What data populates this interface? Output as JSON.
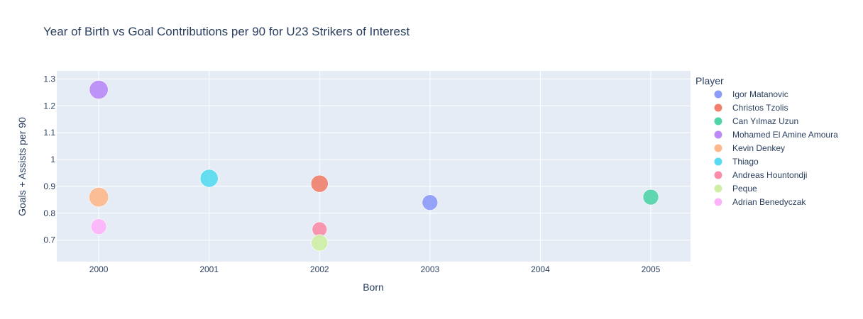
{
  "chart_data": {
    "type": "scatter",
    "title": "Year of Birth vs Goal Contributions per 90 for U23 Strikers of Interest",
    "xlabel": "Born",
    "ylabel": "Goals + Assists per 90",
    "xlim": [
      1999.62,
      2005.36
    ],
    "ylim": [
      0.62,
      1.33
    ],
    "x_ticks": [
      "2000",
      "2001",
      "2002",
      "2003",
      "2004",
      "2005"
    ],
    "y_ticks": [
      "0.7",
      "0.8",
      "0.9",
      "1",
      "1.1",
      "1.2",
      "1.3"
    ],
    "grid": true,
    "legend_title": "Player",
    "legend_position": "right",
    "series": [
      {
        "name": "Igor Matanovic",
        "color": "#8b9bf7",
        "x": [
          2003
        ],
        "y": [
          0.84
        ],
        "size": 1
      },
      {
        "name": "Christos Tzolis",
        "color": "#f0806c",
        "x": [
          2002
        ],
        "y": [
          0.91
        ],
        "size": 1.1
      },
      {
        "name": "Can Yılmaz Uzun",
        "color": "#4fd4a8",
        "x": [
          2005
        ],
        "y": [
          0.86
        ],
        "size": 1
      },
      {
        "name": "Mohamed El Amine Amoura",
        "color": "#b98af8",
        "x": [
          2000
        ],
        "y": [
          1.26
        ],
        "size": 1.2
      },
      {
        "name": "Kevin Denkey",
        "color": "#fdb88c",
        "x": [
          2000
        ],
        "y": [
          0.86
        ],
        "size": 1.25
      },
      {
        "name": "Thiago",
        "color": "#57dbf0",
        "x": [
          2001
        ],
        "y": [
          0.93
        ],
        "size": 1.15
      },
      {
        "name": "Andreas Hountondji",
        "color": "#f98da9",
        "x": [
          2002
        ],
        "y": [
          0.74
        ],
        "size": 0.95
      },
      {
        "name": "Peque",
        "color": "#cdeea4",
        "x": [
          2002
        ],
        "y": [
          0.69
        ],
        "size": 1.05
      },
      {
        "name": "Adrian Benedyczak",
        "color": "#fdb3fb",
        "x": [
          2000
        ],
        "y": [
          0.75
        ],
        "size": 1
      }
    ]
  }
}
